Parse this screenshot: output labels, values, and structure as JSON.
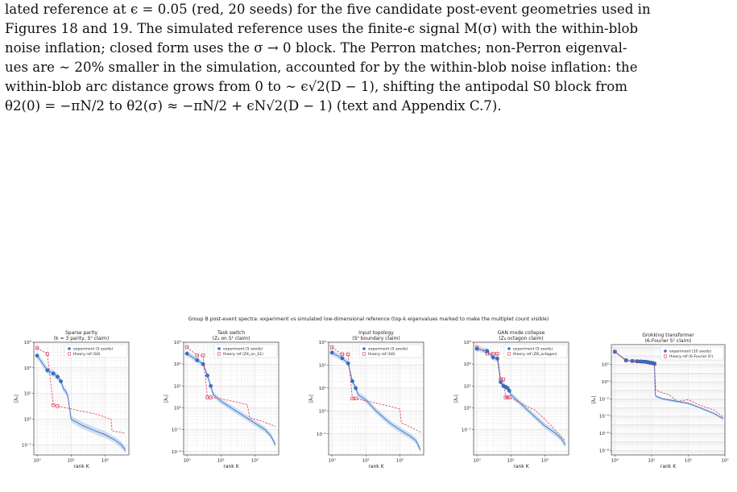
{
  "caption": {
    "lines": [
      "lated reference at ϵ = 0.05 (red, 20 seeds) for the five candidate post-event geometries used in",
      "Figures 18 and 19. The simulated reference uses the finite-ϵ signal M(σ) with the within-blob",
      "noise inflation; closed form uses the σ → 0 block. The Perron matches; non-Perron eigenval-",
      "ues are ∼ 20% smaller in the simulation, accounted for by the within-blob noise inflation: the",
      "within-blob arc distance grows from 0 to ∼ ϵ√2(D − 1), shifting the antipodal S0 block from",
      "θ2(0) = −πN/2 to θ2(σ) ≈ −πN/2 + ϵN√2(D − 1) (text and Appendix C.7)."
    ]
  },
  "figure_title": "Group B post-event spectra: experiment vs simulated low-dimensional reference (top-k eigenvalues marked to make the multiplet count visible)",
  "colors": {
    "experiment": "#3a6fc4",
    "theory": "#e0395a",
    "band": "#a9c6e8"
  },
  "chart_data": [
    {
      "type": "line",
      "title": "Sparse parity",
      "subtitle": "(k = 3 parity, S⁰ claim)",
      "xlabel": "rank K",
      "ylabel": "|λₖ|",
      "xscale": "log",
      "yscale": "log",
      "xlim": [
        0.8,
        500
      ],
      "ylim": [
        0.04,
        1000
      ],
      "xticks": [
        {
          "v": 1,
          "t": "10⁰"
        },
        {
          "v": 10,
          "t": "10¹"
        },
        {
          "v": 100,
          "t": "10²"
        }
      ],
      "yticks": [
        {
          "v": 0.1,
          "t": "10⁻¹"
        },
        {
          "v": 1,
          "t": "10⁰"
        },
        {
          "v": 10,
          "t": "10¹"
        },
        {
          "v": 100,
          "t": "10²"
        },
        {
          "v": 1000,
          "t": "10³"
        }
      ],
      "legend": [
        "experiment (5 seeds)",
        "theory ref (S0)"
      ],
      "legend_position": "top-right",
      "grid": true,
      "experiment": {
        "x": [
          1,
          2,
          3,
          4,
          5,
          6,
          7,
          8,
          10,
          20,
          50,
          100,
          200,
          300,
          400
        ],
        "y": [
          300,
          80,
          60,
          45,
          30,
          15,
          12,
          8,
          1.0,
          0.6,
          0.35,
          0.25,
          0.15,
          0.1,
          0.06
        ]
      },
      "experiment_marked": {
        "x": [
          1,
          2,
          3,
          4,
          5
        ],
        "y": [
          300,
          80,
          60,
          45,
          30
        ]
      },
      "theory": {
        "x": [
          1,
          2,
          3,
          4,
          10,
          50,
          100,
          150,
          160,
          300,
          400
        ],
        "y": [
          600,
          350,
          3.5,
          3.2,
          2.5,
          1.6,
          1.2,
          1.0,
          0.35,
          0.3,
          0.28
        ]
      },
      "theory_marked": {
        "x": [
          1,
          2,
          3,
          4
        ],
        "y": [
          600,
          350,
          3.5,
          3.2
        ]
      }
    },
    {
      "type": "line",
      "title": "Task switch",
      "subtitle": "(Z₄ on S¹ claim)",
      "xlabel": "rank K",
      "ylabel": "|λₖ|",
      "xscale": "log",
      "yscale": "log",
      "xlim": [
        0.8,
        500
      ],
      "ylim": [
        0.007,
        1000
      ],
      "xticks": [
        {
          "v": 1,
          "t": "10⁰"
        },
        {
          "v": 10,
          "t": "10¹"
        },
        {
          "v": 100,
          "t": "10²"
        }
      ],
      "yticks": [
        {
          "v": 0.01,
          "t": "10⁻²"
        },
        {
          "v": 0.1,
          "t": "10⁻¹"
        },
        {
          "v": 1,
          "t": "10⁰"
        },
        {
          "v": 10,
          "t": "10¹"
        },
        {
          "v": 100,
          "t": "10²"
        },
        {
          "v": 1000,
          "t": "10³"
        }
      ],
      "legend": [
        "experiment (5 seeds)",
        "theory ref (Z4_on_S1)"
      ],
      "legend_position": "top-right",
      "grid": true,
      "experiment": {
        "x": [
          1,
          2,
          3,
          4,
          5,
          6,
          10,
          20,
          50,
          100,
          200,
          300,
          400
        ],
        "y": [
          300,
          150,
          100,
          30,
          10,
          4,
          2,
          1.0,
          0.4,
          0.2,
          0.1,
          0.05,
          0.02
        ]
      },
      "experiment_marked": {
        "x": [
          1,
          2,
          3,
          4,
          5
        ],
        "y": [
          300,
          150,
          100,
          30,
          10
        ]
      },
      "theory": {
        "x": [
          1,
          2,
          3,
          4,
          5,
          10,
          30,
          60,
          70,
          150,
          300,
          400
        ],
        "y": [
          600,
          250,
          250,
          3,
          3,
          2.6,
          1.8,
          1.4,
          0.35,
          0.25,
          0.17,
          0.14
        ]
      },
      "theory_marked": {
        "x": [
          1,
          2,
          3,
          4,
          5
        ],
        "y": [
          600,
          250,
          250,
          3,
          3
        ]
      }
    },
    {
      "type": "line",
      "title": "Input topology",
      "subtitle": "(S⁰ boundary claim)",
      "xlabel": "rank K",
      "ylabel": "|λₖ|",
      "xscale": "log",
      "yscale": "log",
      "xlim": [
        0.8,
        500
      ],
      "ylim": [
        0.012,
        1000
      ],
      "xticks": [
        {
          "v": 1,
          "t": "10⁰"
        },
        {
          "v": 10,
          "t": "10¹"
        },
        {
          "v": 100,
          "t": "10²"
        }
      ],
      "yticks": [
        {
          "v": 0.1,
          "t": "10⁻¹"
        },
        {
          "v": 1,
          "t": "10⁰"
        },
        {
          "v": 10,
          "t": "10¹"
        },
        {
          "v": 100,
          "t": "10²"
        },
        {
          "v": 1000,
          "t": "10³"
        }
      ],
      "legend": [
        "experiment (5 seeds)",
        "theory ref (S0)"
      ],
      "legend_position": "top-right",
      "grid": true,
      "experiment": {
        "x": [
          1,
          2,
          3,
          4,
          5,
          6,
          10,
          20,
          50,
          100,
          200,
          300,
          400
        ],
        "y": [
          350,
          200,
          120,
          20,
          10,
          5,
          3,
          1.0,
          0.3,
          0.15,
          0.08,
          0.05,
          0.02
        ]
      },
      "experiment_marked": {
        "x": [
          1,
          2,
          3,
          4,
          5
        ],
        "y": [
          350,
          200,
          120,
          20,
          10
        ]
      },
      "theory": {
        "x": [
          1,
          2,
          3,
          4,
          5,
          10,
          50,
          100,
          110,
          200,
          400
        ],
        "y": [
          600,
          300,
          300,
          3.5,
          3.5,
          2.8,
          1.6,
          1.2,
          0.3,
          0.2,
          0.12
        ]
      },
      "theory_marked": {
        "x": [
          1,
          2,
          3,
          4,
          5
        ],
        "y": [
          600,
          300,
          300,
          3.5,
          3.5
        ]
      }
    },
    {
      "type": "line",
      "title": "GAN mode collapse",
      "subtitle": "(Z₈ octagon claim)",
      "xlabel": "rank K",
      "ylabel": "|λₖ|",
      "xscale": "log",
      "yscale": "log",
      "xlim": [
        0.8,
        500
      ],
      "ylim": [
        0.007,
        1000
      ],
      "xticks": [
        {
          "v": 1,
          "t": "10⁰"
        },
        {
          "v": 10,
          "t": "10¹"
        },
        {
          "v": 100,
          "t": "10²"
        }
      ],
      "yticks": [
        {
          "v": 0.1,
          "t": "10⁻¹"
        },
        {
          "v": 1,
          "t": "10⁰"
        },
        {
          "v": 10,
          "t": "10¹"
        },
        {
          "v": 100,
          "t": "10²"
        },
        {
          "v": 1000,
          "t": "10³"
        }
      ],
      "legend": [
        "experiment (5 seeds)",
        "theory ref (Z8_octagon)"
      ],
      "legend_position": "top-right",
      "grid": true,
      "experiment": {
        "x": [
          1,
          2,
          3,
          4,
          5,
          6,
          7,
          8,
          9,
          10,
          20,
          50,
          100,
          200,
          300,
          400
        ],
        "y": [
          500,
          400,
          200,
          180,
          15,
          10,
          9,
          8,
          6,
          4,
          1.5,
          0.4,
          0.15,
          0.07,
          0.04,
          0.02
        ]
      },
      "experiment_marked": {
        "x": [
          1,
          2,
          3,
          4,
          5,
          6,
          7,
          8,
          9
        ],
        "y": [
          500,
          400,
          200,
          180,
          15,
          10,
          9,
          8,
          6
        ]
      },
      "theory": {
        "x": [
          1,
          2,
          3,
          4,
          5,
          6,
          7,
          8,
          9,
          10,
          20,
          50,
          100,
          200,
          300,
          400
        ],
        "y": [
          600,
          300,
          300,
          300,
          20,
          20,
          3,
          3,
          3,
          2.8,
          1.6,
          0.8,
          0.3,
          0.1,
          0.05,
          0.03
        ]
      },
      "theory_marked": {
        "x": [
          1,
          2,
          3,
          4,
          5,
          6,
          7,
          8,
          9
        ],
        "y": [
          600,
          300,
          300,
          300,
          20,
          20,
          3,
          3,
          3
        ]
      }
    },
    {
      "type": "line",
      "title": "Grokking transformer",
      "subtitle": "(6-Fourier S¹ claim)",
      "xlabel": "rank K",
      "ylabel": "|λₖ|",
      "xscale": "log",
      "yscale": "log",
      "xlim": [
        0.8,
        1000
      ],
      "ylim": [
        3e-09,
        20000
      ],
      "xticks": [
        {
          "v": 1,
          "t": "10⁰"
        },
        {
          "v": 10,
          "t": "10¹"
        },
        {
          "v": 100,
          "t": "10²"
        },
        {
          "v": 1000,
          "t": "10³"
        }
      ],
      "yticks": [
        {
          "v": 1e-08,
          "t": "10⁻⁸"
        },
        {
          "v": 1e-06,
          "t": "10⁻⁶"
        },
        {
          "v": 0.0001,
          "t": "10⁻⁴"
        },
        {
          "v": 0.01,
          "t": "10⁻²"
        },
        {
          "v": 1,
          "t": "10⁰"
        },
        {
          "v": 100,
          "t": "10²"
        }
      ],
      "legend": [
        "experiment (10 seeds)",
        "theory ref (6-Fourier S¹)"
      ],
      "legend_position": "top-right",
      "grid": true,
      "experiment": {
        "x": [
          1,
          2,
          3,
          4,
          5,
          6,
          7,
          8,
          9,
          10,
          11,
          12,
          12.5,
          13,
          20,
          50,
          100,
          200,
          500,
          900
        ],
        "y": [
          3000,
          300,
          250,
          230,
          220,
          210,
          200,
          180,
          160,
          150,
          140,
          120,
          0.05,
          0.02,
          0.01,
          0.005,
          0.003,
          0.001,
          0.0002,
          5e-05
        ]
      },
      "experiment_marked": {
        "x": [
          1,
          2,
          3,
          4,
          5,
          6,
          7,
          8,
          9,
          10,
          11,
          12
        ],
        "y": [
          3000,
          300,
          250,
          230,
          220,
          210,
          200,
          180,
          160,
          150,
          140,
          120
        ]
      },
      "theory": {
        "x": [
          1,
          2,
          3,
          4,
          5,
          6,
          7,
          8,
          9,
          10,
          11,
          12,
          13,
          20,
          30,
          50,
          100,
          200,
          500,
          900
        ],
        "y": [
          3000,
          300,
          250,
          230,
          220,
          210,
          200,
          180,
          160,
          150,
          140,
          120,
          0.1,
          0.05,
          0.03,
          0.005,
          0.008,
          0.002,
          0.0005,
          8e-05
        ]
      },
      "theory_marked": {
        "x": [
          1,
          2,
          3,
          4,
          5,
          6,
          7,
          8,
          9,
          10,
          11,
          12
        ],
        "y": [
          3000,
          300,
          250,
          230,
          220,
          210,
          200,
          180,
          160,
          150,
          140,
          120
        ]
      }
    }
  ]
}
